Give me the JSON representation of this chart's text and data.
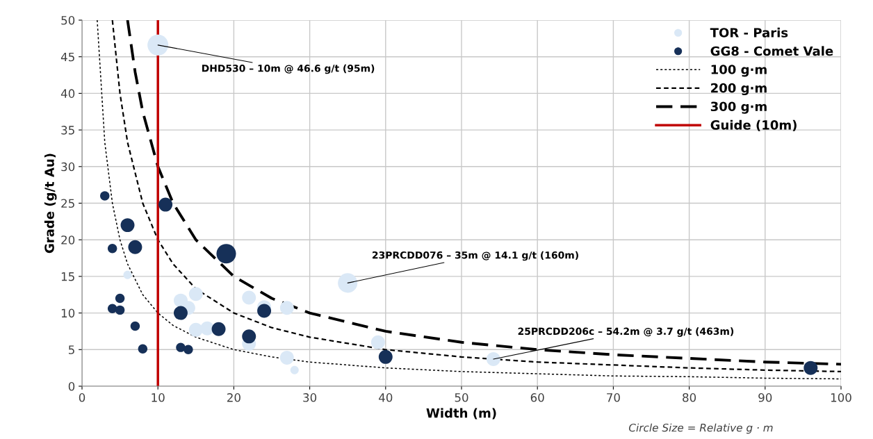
{
  "chart_data": {
    "type": "bubble",
    "xlabel": "Width (m)",
    "ylabel": "Grade (g/t Au)",
    "xlim": [
      0,
      100
    ],
    "xticks": [
      0,
      10,
      20,
      30,
      40,
      50,
      60,
      70,
      80,
      90,
      100
    ],
    "ylim": [
      0,
      50
    ],
    "yticks": [
      0,
      5,
      10,
      15,
      20,
      25,
      30,
      35,
      40,
      45,
      50
    ],
    "grid": true,
    "legend": "top right",
    "series": [
      {
        "name": "TOR - Paris",
        "color": "#dae8f6",
        "x": [
          10,
          6,
          13,
          14,
          15,
          15,
          16.5,
          22,
          22,
          24,
          27,
          27,
          28,
          35,
          39,
          54.2
        ],
        "values": [
          46.6,
          15.2,
          11.7,
          10.7,
          12.6,
          7.7,
          7.9,
          12.1,
          5.8,
          10.8,
          10.7,
          3.9,
          2.2,
          14.1,
          6.0,
          3.7
        ],
        "sizes": [
          1,
          0.16,
          0.44,
          0.44,
          0.44,
          0.44,
          0.44,
          0.44,
          0.44,
          0.44,
          0.44,
          0.44,
          0.16,
          0.87,
          0.44,
          0.44
        ]
      },
      {
        "name": "GG8 - Comet Vale",
        "color": "#163058",
        "x": [
          3,
          4,
          4,
          5,
          5,
          6,
          7,
          7,
          8,
          11,
          13,
          13,
          14,
          18,
          19,
          22,
          24,
          40,
          96
        ],
        "values": [
          26,
          18.8,
          10.6,
          12,
          10.4,
          22,
          19,
          8.2,
          5.1,
          24.8,
          10,
          5.3,
          5,
          7.8,
          18.1,
          6.8,
          10.3,
          4,
          2.5
        ],
        "sizes": [
          0.2,
          0.2,
          0.2,
          0.2,
          0.2,
          0.44,
          0.44,
          0.2,
          0.2,
          0.44,
          0.44,
          0.2,
          0.2,
          0.44,
          0.87,
          0.44,
          0.44,
          0.44,
          0.44
        ]
      },
      {
        "name": "100 g·m",
        "type": "line",
        "color": "#000000",
        "line_style": "dotted",
        "x": [
          2,
          3,
          4,
          5,
          6,
          8,
          10,
          12,
          15,
          20,
          25,
          30,
          40,
          50,
          60,
          70,
          80,
          90,
          100
        ],
        "values": [
          50,
          33.3,
          25,
          20,
          16.7,
          12.5,
          10,
          8.3,
          6.7,
          5,
          4,
          3.3,
          2.5,
          2,
          1.7,
          1.4,
          1.3,
          1.1,
          1
        ]
      },
      {
        "name": "200 g·m",
        "type": "line",
        "color": "#000000",
        "line_style": "dashed",
        "x": [
          4,
          5,
          6,
          8,
          10,
          12,
          15,
          20,
          25,
          30,
          40,
          50,
          60,
          70,
          80,
          90,
          100
        ],
        "values": [
          50,
          40,
          33.3,
          25,
          20,
          16.7,
          13.3,
          10,
          8,
          6.7,
          5,
          4,
          3.3,
          2.9,
          2.5,
          2.2,
          2
        ]
      },
      {
        "name": "300 g·m",
        "type": "line",
        "color": "#000000",
        "line_style": "longdash",
        "x": [
          6,
          7,
          8,
          10,
          12,
          15,
          20,
          25,
          30,
          40,
          50,
          60,
          70,
          80,
          90,
          100
        ],
        "values": [
          50,
          42.9,
          37.5,
          30,
          25,
          20,
          15,
          12,
          10,
          7.5,
          6,
          5,
          4.3,
          3.8,
          3.3,
          3
        ]
      },
      {
        "name": "Guide (10m)",
        "type": "line",
        "color": "#c00000",
        "line_style": "solid",
        "x": [
          10,
          10
        ],
        "values": [
          0,
          50
        ]
      }
    ],
    "annotations": [
      {
        "text": "DHD530 – 10m @ 46.6 g/t (95m)",
        "x": 10,
        "y": 46.6
      },
      {
        "text": "23PRCDD076 – 35m @ 14.1 g/t (160m)",
        "x": 35,
        "y": 14.1
      },
      {
        "text": "25PRCDD206c – 54.2m @ 3.7 g/t (463m)",
        "x": 54.2,
        "y": 3.7
      },
      "Circle Size = Relative g · m"
    ]
  }
}
